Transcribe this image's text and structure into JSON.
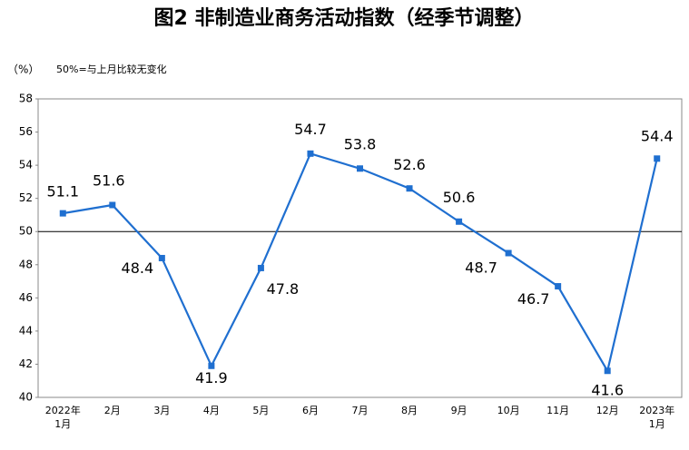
{
  "chart_data": {
    "type": "line",
    "title": "图2 非制造业商务活动指数（经季节调整）",
    "unit_label": "（%）",
    "note": "50%=与上月比较无变化",
    "categories": [
      "2022年\n1月",
      "2月",
      "3月",
      "4月",
      "5月",
      "6月",
      "7月",
      "8月",
      "9月",
      "10月",
      "11月",
      "12月",
      "2023年\n1月"
    ],
    "values": [
      51.1,
      51.6,
      48.4,
      41.9,
      47.8,
      54.7,
      53.8,
      52.6,
      50.6,
      48.7,
      46.7,
      41.6,
      54.4
    ],
    "color": "#1f6fd0",
    "reference_line": 50,
    "ylim": [
      40,
      58
    ],
    "yticks": [
      40,
      42,
      44,
      46,
      48,
      50,
      52,
      54,
      56,
      58
    ]
  }
}
